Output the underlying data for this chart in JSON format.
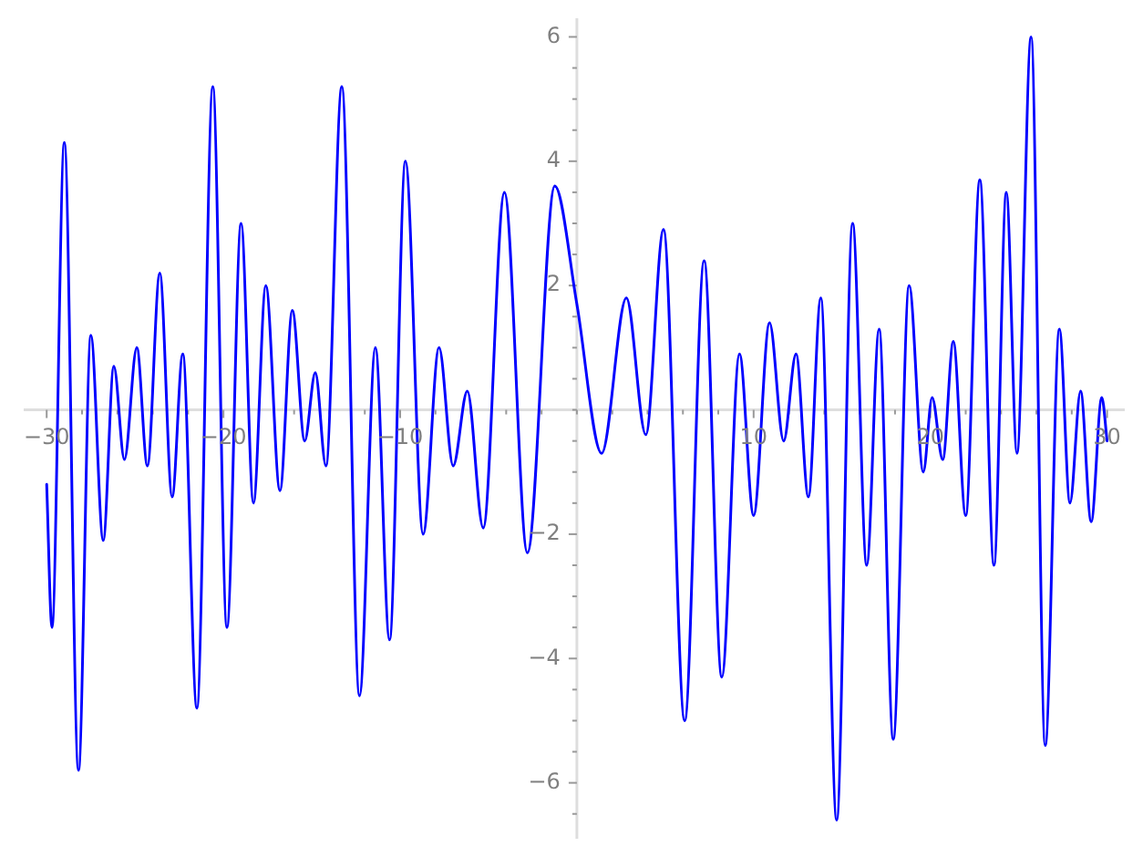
{
  "chart_data": {
    "type": "line",
    "color": "#0000ff",
    "marker": "none",
    "grid": false,
    "legend": false,
    "x": [
      -30,
      -29.7,
      -29.0,
      -28.2,
      -27.5,
      -26.8,
      -26.2,
      -25.6,
      -24.9,
      -24.3,
      -23.6,
      -22.9,
      -22.3,
      -21.5,
      -20.6,
      -19.8,
      -19.0,
      -18.3,
      -17.6,
      -16.8,
      -16.1,
      -15.4,
      -14.8,
      -14.2,
      -13.3,
      -12.3,
      -11.4,
      -10.6,
      -9.7,
      -8.7,
      -7.8,
      -7.0,
      -6.2,
      -5.3,
      -4.1,
      -2.8,
      -1.25,
      0,
      1.4,
      2.8,
      3.9,
      4.9,
      6.1,
      7.2,
      8.2,
      9.2,
      10.0,
      10.9,
      11.7,
      12.4,
      13.1,
      13.8,
      14.7,
      15.6,
      16.4,
      17.1,
      17.9,
      18.8,
      19.6,
      20.1,
      20.7,
      21.3,
      22.0,
      22.8,
      23.6,
      24.3,
      24.9,
      25.7,
      26.5,
      27.3,
      27.9,
      28.5,
      29.1,
      29.7,
      30
    ],
    "values": [
      -1.2,
      -3.5,
      4.3,
      -5.8,
      1.2,
      -2.1,
      0.7,
      -0.8,
      1.0,
      -0.9,
      2.2,
      -1.4,
      0.9,
      -4.8,
      5.2,
      -3.5,
      3.0,
      -1.5,
      2.0,
      -1.3,
      1.6,
      -0.5,
      0.6,
      -0.9,
      5.2,
      -4.6,
      1.0,
      -3.7,
      4.0,
      -2.0,
      1.0,
      -0.9,
      0.3,
      -1.9,
      3.5,
      -2.3,
      3.6,
      1.7,
      -0.7,
      1.8,
      -0.4,
      2.9,
      -5.0,
      2.4,
      -4.3,
      0.9,
      -1.7,
      1.4,
      -0.5,
      0.9,
      -1.4,
      1.8,
      -6.6,
      3.0,
      -2.5,
      1.3,
      -5.3,
      2.0,
      -1.0,
      0.2,
      -0.8,
      1.1,
      -1.7,
      3.7,
      -2.5,
      3.5,
      -0.7,
      6.0,
      -5.4,
      1.3,
      -1.5,
      0.3,
      -1.8,
      0.2,
      -0.5
    ],
    "xlim": [
      -31.3,
      31.0
    ],
    "xticks": [
      {
        "value": -30,
        "label": "−30"
      },
      {
        "value": -28,
        "label": null
      },
      {
        "value": -26,
        "label": null
      },
      {
        "value": -24,
        "label": null
      },
      {
        "value": -22,
        "label": null
      },
      {
        "value": -20,
        "label": "−20"
      },
      {
        "value": -18,
        "label": null
      },
      {
        "value": -16,
        "label": null
      },
      {
        "value": -14,
        "label": null
      },
      {
        "value": -12,
        "label": null
      },
      {
        "value": -10,
        "label": "−10"
      },
      {
        "value": -8,
        "label": null
      },
      {
        "value": -6,
        "label": null
      },
      {
        "value": -4,
        "label": null
      },
      {
        "value": -2,
        "label": null
      },
      {
        "value": 0,
        "label": null
      },
      {
        "value": 2,
        "label": null
      },
      {
        "value": 4,
        "label": null
      },
      {
        "value": 6,
        "label": null
      },
      {
        "value": 8,
        "label": null
      },
      10,
      {
        "value": 12,
        "label": null
      },
      {
        "value": 14,
        "label": null
      },
      {
        "value": 16,
        "label": null
      },
      {
        "value": 18,
        "label": null
      },
      20,
      {
        "value": 22,
        "label": null
      },
      {
        "value": 24,
        "label": null
      },
      {
        "value": 26,
        "label": null
      },
      {
        "value": 28,
        "label": null
      },
      30
    ],
    "ylim": [
      -6.9,
      6.3
    ],
    "yticks": [
      {
        "value": -6.5,
        "label": null
      },
      {
        "value": -6,
        "label": "−6"
      },
      {
        "value": -5.5,
        "label": null
      },
      {
        "value": -5,
        "label": null
      },
      {
        "value": -4.5,
        "label": null
      },
      {
        "value": -4,
        "label": "−4"
      },
      {
        "value": -3.5,
        "label": null
      },
      {
        "value": -3,
        "label": null
      },
      {
        "value": -2.5,
        "label": null
      },
      {
        "value": -2,
        "label": "−2"
      },
      {
        "value": -1.5,
        "label": null
      },
      {
        "value": -1,
        "label": null
      },
      {
        "value": -0.5,
        "label": null
      },
      {
        "value": 0,
        "label": null
      },
      {
        "value": 0.5,
        "label": null
      },
      {
        "value": 1,
        "label": null
      },
      {
        "value": 1.5,
        "label": null
      },
      2,
      {
        "value": 2.5,
        "label": null
      },
      {
        "value": 3,
        "label": null
      },
      {
        "value": 3.5,
        "label": null
      },
      4,
      {
        "value": 4.5,
        "label": null
      },
      {
        "value": 5,
        "label": null
      },
      {
        "value": 5.5,
        "label": null
      },
      6
    ]
  }
}
